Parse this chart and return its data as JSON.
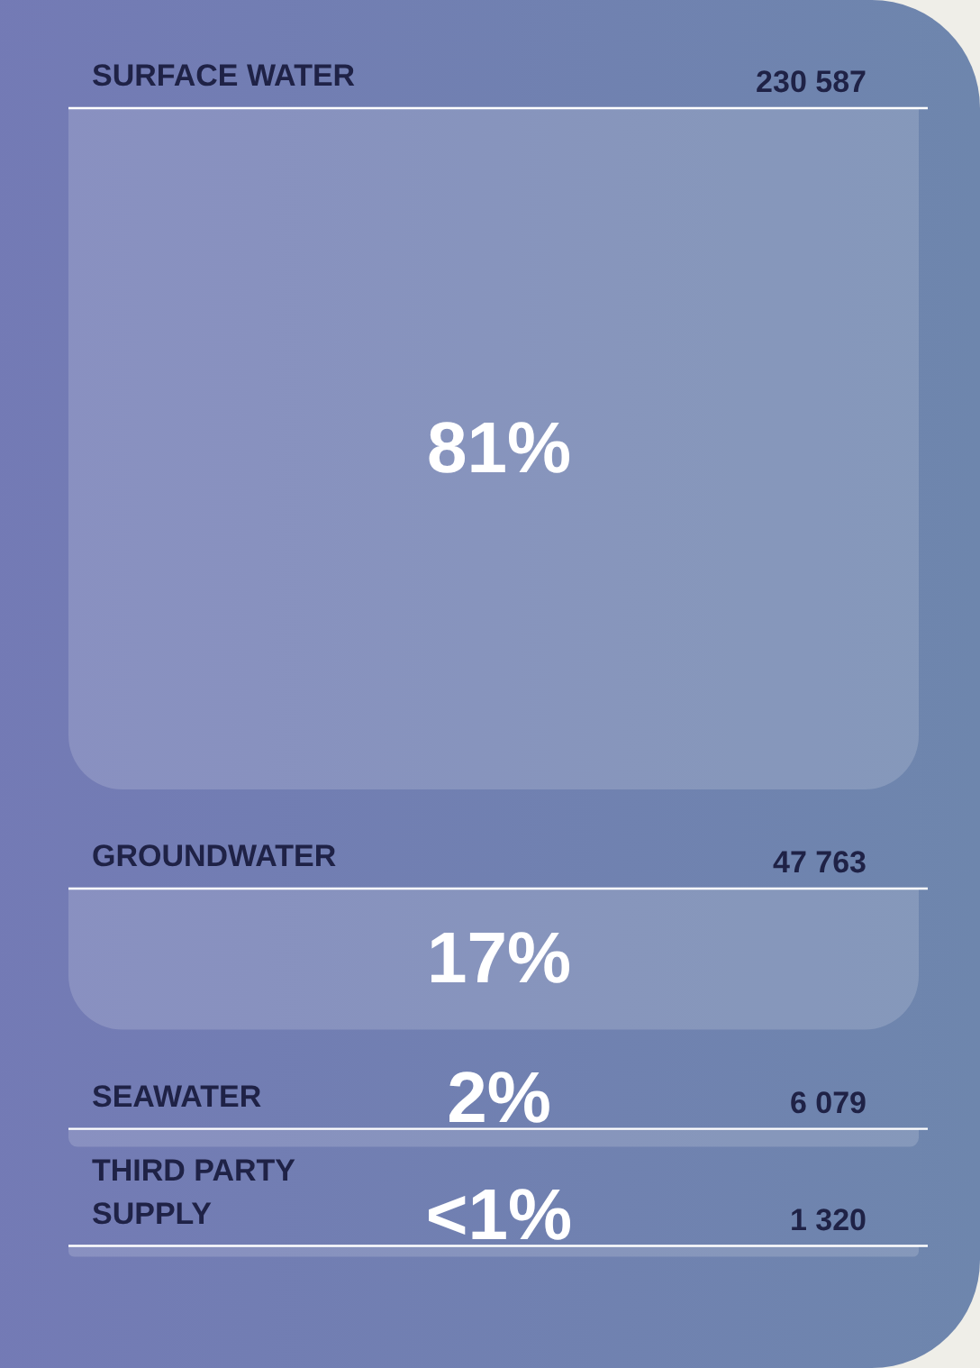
{
  "chart_data": {
    "type": "other",
    "categories": [
      "SURFACE WATER",
      "GROUNDWATER",
      "SEAWATER",
      "THIRD PARTY SUPPLY"
    ],
    "values": [
      230587,
      47763,
      6079,
      1320
    ],
    "data_labels": true,
    "annotations": [
      "81%",
      "17%",
      "2%",
      "<1%"
    ]
  }
}
